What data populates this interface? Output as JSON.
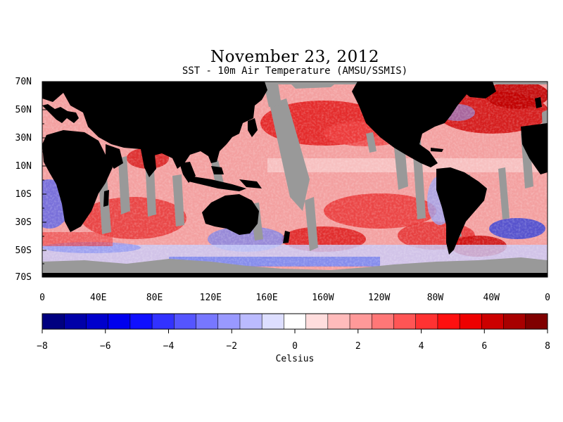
{
  "title": "November 23, 2012",
  "subtitle": "SST - 10m Air Temperature (AMSU/SSMIS)",
  "map": {
    "lat_labels": [
      "70N",
      "50N",
      "30N",
      "10N",
      "10S",
      "30S",
      "50S",
      "70S"
    ],
    "lon_labels": [
      "0",
      "40E",
      "80E",
      "120E",
      "160E",
      "160W",
      "120W",
      "80W",
      "40W",
      "0"
    ],
    "colors": {
      "land": "#000000",
      "missing": "#999999",
      "ocean_positive": "#e8292c",
      "ocean_negative": "#2233cc"
    }
  },
  "colorbar": {
    "label": "Celsius",
    "tick_labels": [
      "-8",
      "-6",
      "-4",
      "-2",
      "0",
      "2",
      "4",
      "6",
      "8"
    ],
    "range": [
      -8,
      8
    ],
    "colors": [
      "#000080",
      "#0000a8",
      "#0000cc",
      "#0000ee",
      "#1010ff",
      "#3232ff",
      "#5555ff",
      "#7777ff",
      "#9999ff",
      "#bbbbff",
      "#dddeff",
      "#ffffff",
      "#ffdddd",
      "#ffbbbb",
      "#ff9999",
      "#ff7777",
      "#ff5555",
      "#ff3232",
      "#ff1010",
      "#ee0000",
      "#cc0000",
      "#a80000",
      "#800000"
    ]
  }
}
